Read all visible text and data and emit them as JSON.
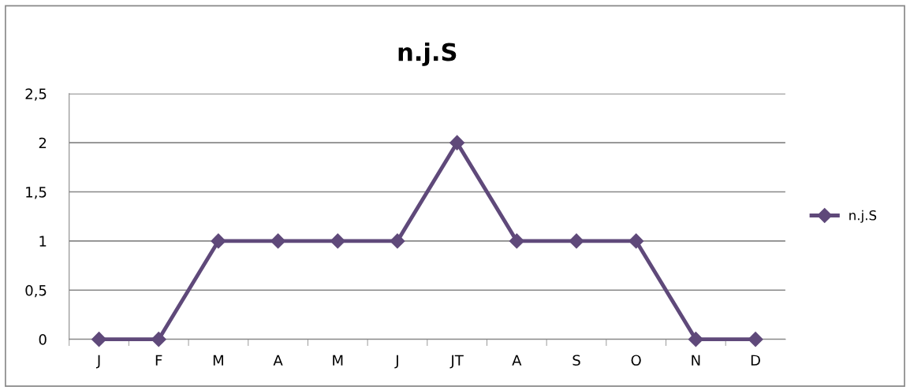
{
  "chart_data": {
    "type": "line",
    "title": "n.j.S",
    "categories": [
      "J",
      "F",
      "M",
      "A",
      "M",
      "J",
      "JT",
      "A",
      "S",
      "O",
      "N",
      "D"
    ],
    "series": [
      {
        "name": "n.j.S",
        "color": "#5f497a",
        "values": [
          0,
          0,
          1,
          1,
          1,
          1,
          2,
          1,
          1,
          1,
          0,
          0
        ]
      }
    ],
    "ylim": [
      0,
      2.5
    ],
    "yticks": [
      {
        "value": 0,
        "label": "0"
      },
      {
        "value": 0.5,
        "label": "0,5"
      },
      {
        "value": 1,
        "label": "1"
      },
      {
        "value": 1.5,
        "label": "1,5"
      },
      {
        "value": 2,
        "label": "2"
      },
      {
        "value": 2.5,
        "label": "2,5"
      }
    ],
    "grid": "y",
    "legend": "right",
    "marker": "diamond",
    "line_style": "solid"
  }
}
